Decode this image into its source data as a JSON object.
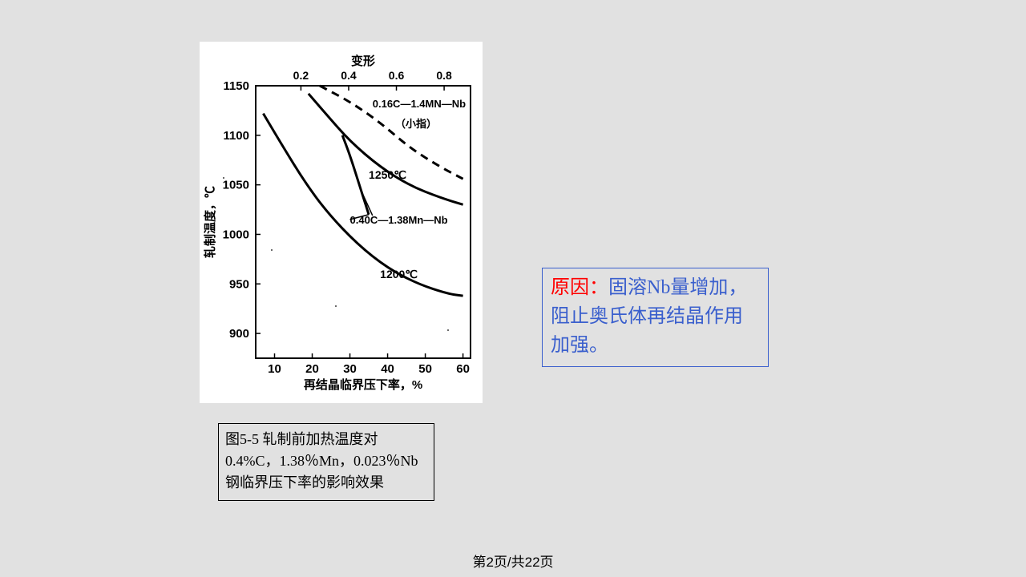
{
  "page": {
    "footer": "第2页/共22页",
    "background": "#e1e1e1"
  },
  "caption": {
    "text": "图5-5 轧制前加热温度对0.4%C，1.38％Mn，0.023％Nb钢临界压下率的影响效果",
    "border_color": "#000000",
    "fontsize": 18
  },
  "reason": {
    "label": "原因：",
    "body": "固溶Nb量增加，阻止奥氏体再结晶作用加强。",
    "label_color": "#ff0000",
    "body_color": "#3a5fcd",
    "border_color": "#3a5fcd",
    "fontsize": 24
  },
  "chart": {
    "type": "line",
    "background_color": "#ffffff",
    "line_color": "#000000",
    "axis_line_width": 2,
    "curve_line_width": 3,
    "y_axis": {
      "label": "轧制温度，℃",
      "min": 875,
      "max": 1150,
      "ticks": [
        900,
        950,
        1000,
        1050,
        1100,
        1150
      ],
      "tick_fontsize": 15
    },
    "x_axis_bottom": {
      "label": "再结晶临界压下率，%",
      "min": 5,
      "max": 62,
      "ticks": [
        10,
        20,
        30,
        40,
        50,
        60
      ],
      "tick_fontsize": 15
    },
    "x_axis_top": {
      "label": "变形",
      "ticks": [
        0.2,
        0.4,
        0.6,
        0.8
      ],
      "tick_fontsize": 14
    },
    "curves": {
      "comp1_dashed": {
        "label_a": "0.16C—1.4MN—Nb",
        "label_b": "（小指）",
        "dash": "10,7",
        "points_pct_temp": [
          [
            22,
            1150
          ],
          [
            30,
            1134
          ],
          [
            38,
            1113
          ],
          [
            46,
            1087
          ],
          [
            54,
            1068
          ],
          [
            60,
            1056
          ]
        ]
      },
      "temp_1250": {
        "label": "1250℃",
        "points_pct_temp": [
          [
            19,
            1142
          ],
          [
            24,
            1120
          ],
          [
            30,
            1094
          ],
          [
            38,
            1068
          ],
          [
            46,
            1049
          ],
          [
            54,
            1037
          ],
          [
            60,
            1030
          ]
        ]
      },
      "comp2_mid": {
        "label": "0.40C—1.38Mn—Nb",
        "points_pct_temp": [
          [
            28,
            1100
          ],
          [
            30,
            1080
          ],
          [
            33,
            1044
          ],
          [
            35,
            1020
          ]
        ]
      },
      "temp_1200": {
        "label": "1200℃",
        "points_pct_temp": [
          [
            7,
            1122
          ],
          [
            12,
            1090
          ],
          [
            18,
            1053
          ],
          [
            24,
            1022
          ],
          [
            32,
            990
          ],
          [
            40,
            966
          ],
          [
            48,
            950
          ],
          [
            56,
            940
          ],
          [
            60,
            938
          ]
        ]
      }
    },
    "label_positions": {
      "comp1_a": {
        "pct": 36,
        "temp": 1128
      },
      "comp1_b": {
        "pct": 42,
        "temp": 1108
      },
      "t1250": {
        "pct": 35,
        "temp": 1056
      },
      "comp2": {
        "pct": 30,
        "temp": 1011
      },
      "t1200": {
        "pct": 38,
        "temp": 956
      }
    },
    "connectors": {
      "t1250_to_comp2": {
        "from": {
          "pct": 33,
          "temp": 1044
        },
        "to": {
          "pct": 36,
          "temp": 1019
        }
      },
      "comp2_to_label": {
        "from": {
          "pct": 35,
          "temp": 1020
        },
        "to": {
          "pct": 30,
          "temp": 1015
        }
      }
    }
  }
}
